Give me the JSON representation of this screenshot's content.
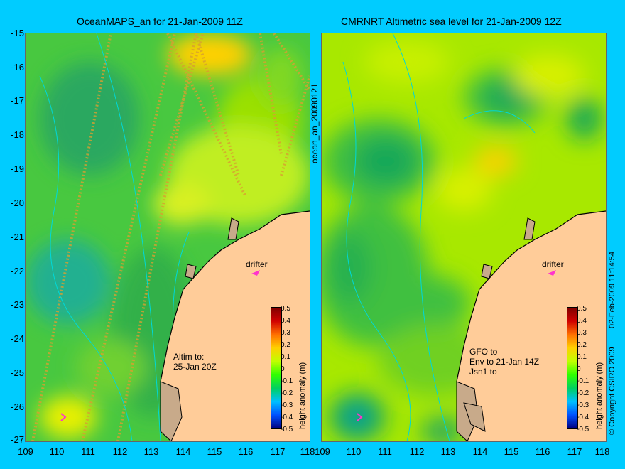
{
  "left_panel": {
    "title": "OceanMAPS_an for 21-Jan-2009 11Z",
    "drifter_label": "drifter",
    "altim_note": "Altim to:\n25-Jan 20Z",
    "side_label": "ocean_an_20090121"
  },
  "right_panel": {
    "title": "CMRNRT Altimetric sea level  for 21-Jan-2009 12Z",
    "drifter_label": "drifter",
    "sat_note": "GFO to\nEnv to 21-Jan 14Z\nJsn1 to",
    "side_label": "02-Feb-2009 11:14:54"
  },
  "y_ticks": [
    "-15",
    "-16",
    "-17",
    "-18",
    "-19",
    "-20",
    "-21",
    "-22",
    "-23",
    "-24",
    "-25",
    "-26",
    "-27"
  ],
  "x_ticks": [
    "109",
    "110",
    "111",
    "112",
    "113",
    "114",
    "115",
    "116",
    "117",
    "118"
  ],
  "colorbar": {
    "ticks": [
      "0.5",
      "0.4",
      "0.3",
      "0.2",
      "0.1",
      "0",
      "-0.1",
      "-0.2",
      "-0.3",
      "-0.4",
      "-0.5"
    ],
    "label": "height anomaly (m)"
  },
  "copyright": "© Copyright CSIRO 2009",
  "colors": {
    "land": "#ffcc99",
    "coast_land": "#c8aa8a",
    "background": "#00ccff"
  }
}
